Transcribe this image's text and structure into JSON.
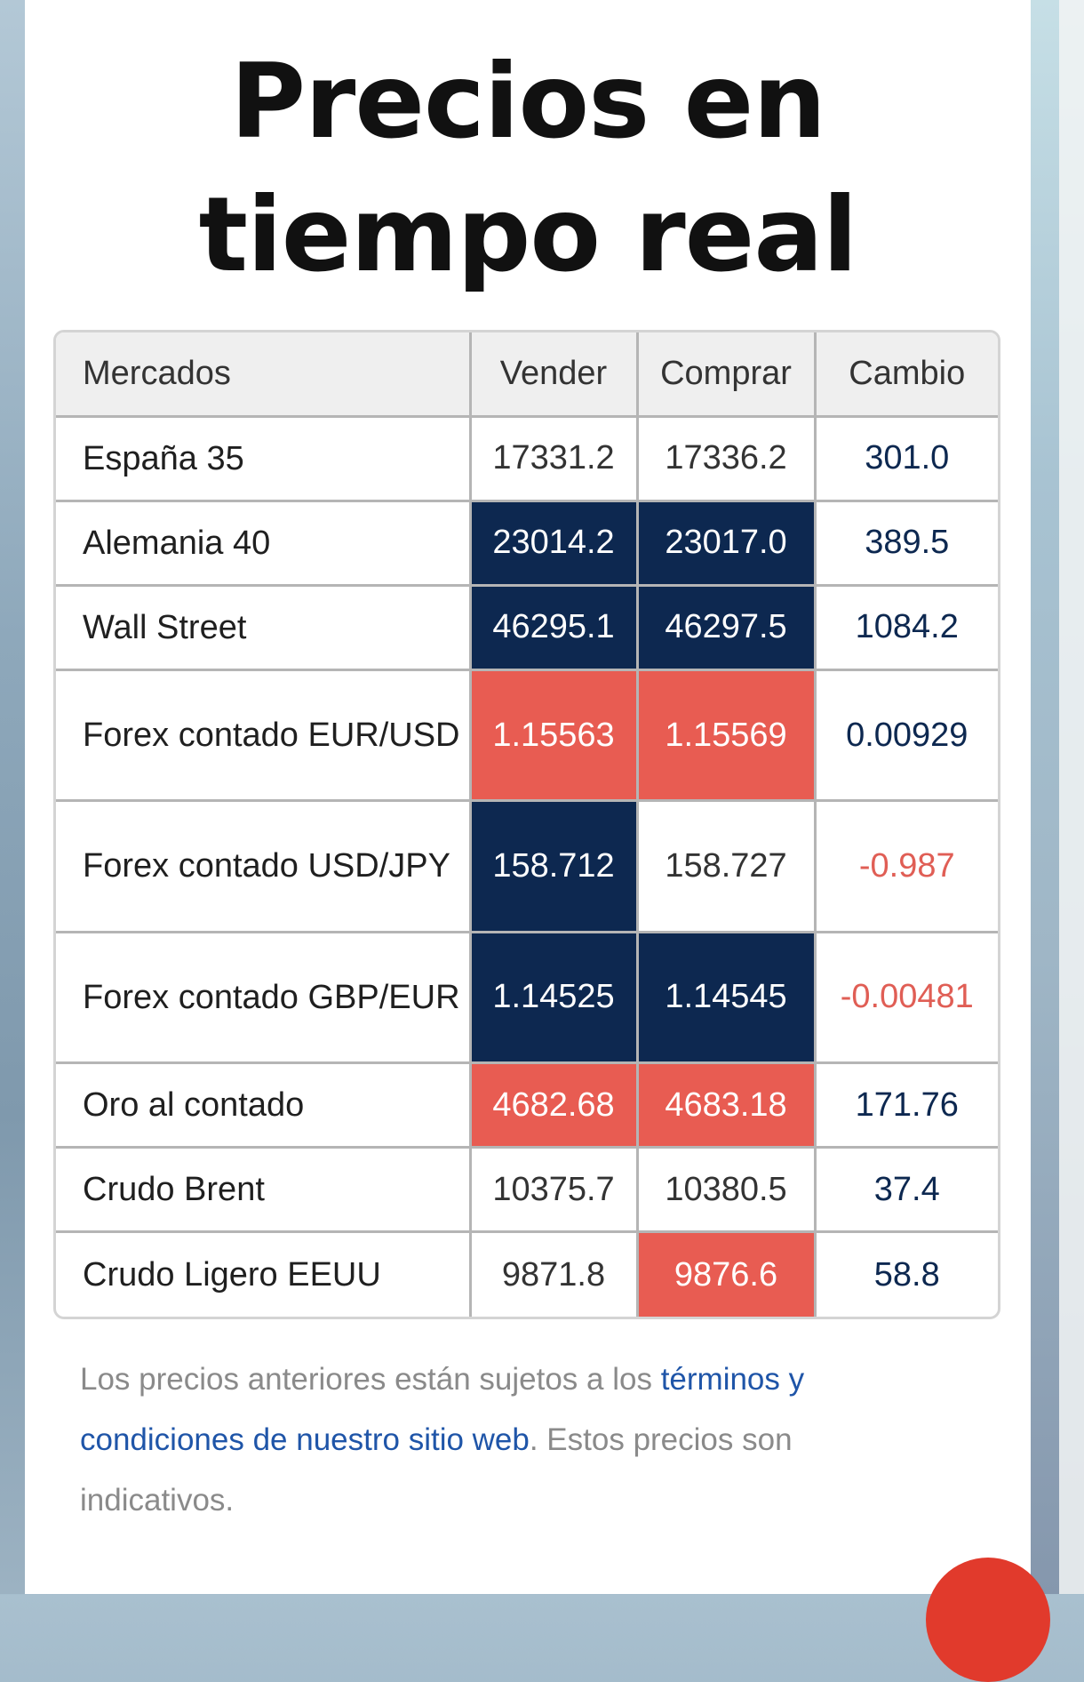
{
  "page": {
    "title": "Precios en tiempo real"
  },
  "table": {
    "headers": [
      "Mercados",
      "Vender",
      "Comprar",
      "Cambio"
    ],
    "rows": [
      {
        "market": "España 35",
        "sell": "17331.2",
        "buy": "17336.2",
        "change": "301.0"
      },
      {
        "market": "Alemania 40",
        "sell": "23014.2",
        "buy": "23017.0",
        "change": "389.5"
      },
      {
        "market": "Wall Street",
        "sell": "46295.1",
        "buy": "46297.5",
        "change": "1084.2"
      },
      {
        "market": "Forex contado EUR/USD",
        "sell": "1.15563",
        "buy": "1.15569",
        "change": "0.00929"
      },
      {
        "market": "Forex contado USD/JPY",
        "sell": "158.712",
        "buy": "158.727",
        "change": "-0.987"
      },
      {
        "market": "Forex contado GBP/EUR",
        "sell": "1.14525",
        "buy": "1.14545",
        "change": "-0.00481"
      },
      {
        "market": "Oro al contado",
        "sell": "4682.68",
        "buy": "4683.18",
        "change": "171.76"
      },
      {
        "market": "Crudo Brent",
        "sell": "10375.7",
        "buy": "10380.5",
        "change": "37.4"
      },
      {
        "market": "Crudo Ligero EEUU",
        "sell": "9871.8",
        "buy": "9876.6",
        "change": "58.8"
      }
    ]
  },
  "disclaimer": {
    "text_before": "Los precios anteriores están sujetos a los ",
    "link": "términos y condiciones de nuestro sitio web",
    "text_after": ". Estos precios son indicativos."
  },
  "colors": {
    "up_cell": "#0d2850",
    "down_cell": "#e85c52",
    "negative_text": "#e05e55",
    "link": "#1f55a8",
    "fab": "#e13a2c"
  }
}
